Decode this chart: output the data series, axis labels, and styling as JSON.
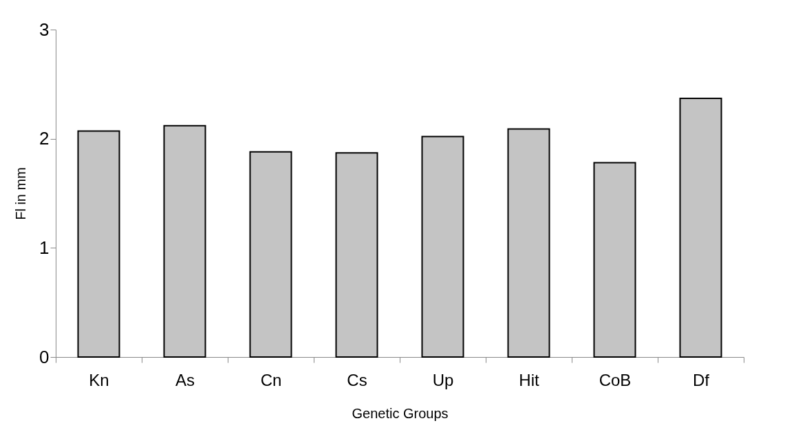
{
  "chart_data": {
    "type": "bar",
    "xlabel": "Genetic Groups",
    "ylabel": "Fl in mm",
    "categories": [
      "Kn",
      "As",
      "Cn",
      "Cs",
      "Up",
      "Hit",
      "CoB",
      "Df"
    ],
    "values": [
      2.07,
      2.12,
      1.88,
      1.87,
      2.02,
      2.09,
      1.78,
      2.37
    ],
    "color": "#c4c4c4",
    "ylim": [
      0,
      3
    ],
    "yticks": [
      0,
      1,
      2,
      3
    ],
    "grid": false,
    "legend": false
  }
}
